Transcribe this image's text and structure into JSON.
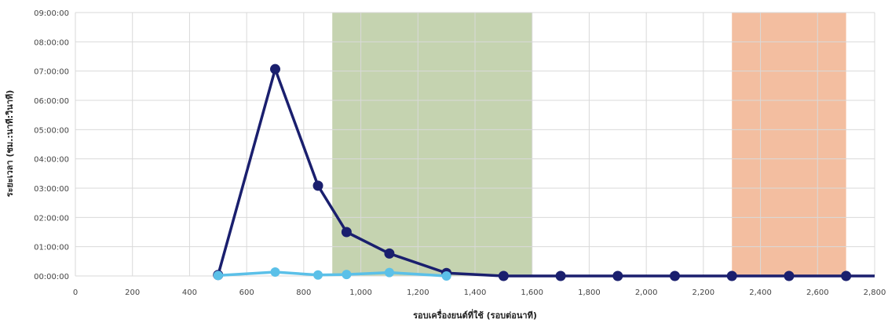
{
  "chart_data": {
    "type": "line",
    "xlabel": "รอบเครื่องยนต์ที่ใช้ (รอบต่อนาที)",
    "ylabel": "ระยะเวลา (ชม.:นาที:วินาที)",
    "xlim": [
      0,
      2800
    ],
    "ylim_seconds": [
      0,
      32400
    ],
    "x_ticks": [
      "0",
      "200",
      "400",
      "600",
      "800",
      "1,000",
      "1,200",
      "1,400",
      "1,600",
      "1,800",
      "2,000",
      "2,200",
      "2,400",
      "2,600",
      "2,800"
    ],
    "y_ticks": [
      "00:00:00",
      "01:00:00",
      "02:00:00",
      "03:00:00",
      "04:00:00",
      "05:00:00",
      "06:00:00",
      "07:00:00",
      "08:00:00",
      "09:00:00"
    ],
    "grid": true,
    "bands": [
      {
        "x_start": 900,
        "x_end": 1600,
        "color": "#c5d3b0"
      },
      {
        "x_start": 2300,
        "x_end": 2700,
        "color": "#f3bea0"
      }
    ],
    "series": [
      {
        "color": "#1a1f6e",
        "points": [
          {
            "x": 500,
            "y": "00:02:00"
          },
          {
            "x": 700,
            "y": "07:04:00"
          },
          {
            "x": 850,
            "y": "03:05:00"
          },
          {
            "x": 950,
            "y": "01:30:00"
          },
          {
            "x": 1100,
            "y": "00:46:00"
          },
          {
            "x": 1300,
            "y": "00:06:00"
          },
          {
            "x": 1500,
            "y": "00:00:00"
          },
          {
            "x": 1700,
            "y": "00:00:00"
          },
          {
            "x": 1900,
            "y": "00:00:00"
          },
          {
            "x": 2100,
            "y": "00:00:00"
          },
          {
            "x": 2300,
            "y": "00:00:00"
          },
          {
            "x": 2500,
            "y": "00:00:00"
          },
          {
            "x": 2700,
            "y": "00:00:00"
          }
        ]
      },
      {
        "color": "#5bc0e8",
        "points": [
          {
            "x": 500,
            "y": "00:01:00"
          },
          {
            "x": 700,
            "y": "00:08:00"
          },
          {
            "x": 850,
            "y": "00:02:00"
          },
          {
            "x": 950,
            "y": "00:03:00"
          },
          {
            "x": 1100,
            "y": "00:07:00"
          },
          {
            "x": 1300,
            "y": "00:00:00"
          }
        ]
      }
    ]
  }
}
